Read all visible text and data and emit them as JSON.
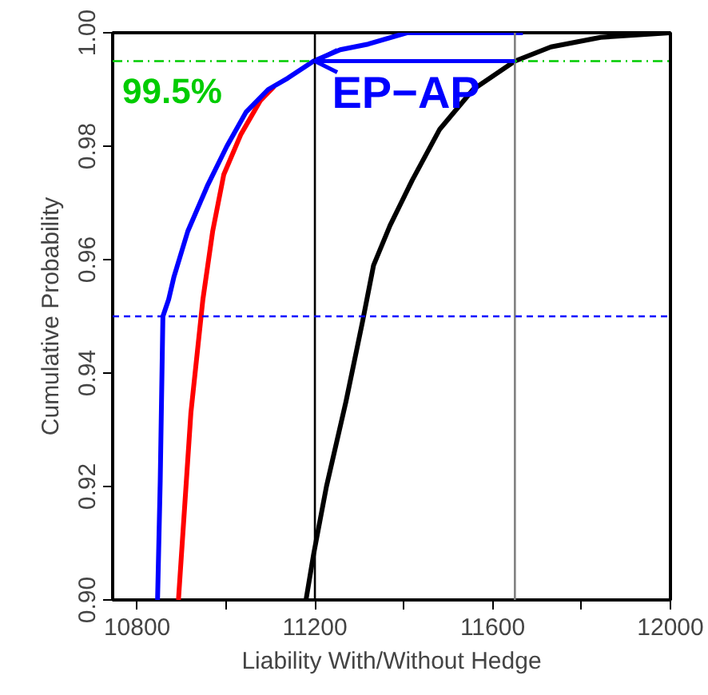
{
  "chart_data": {
    "type": "line",
    "xlabel": "Liability With/Without Hedge",
    "ylabel": "Cumulative Probability",
    "xlim": [
      10745,
      12000
    ],
    "ylim": [
      0.9,
      1.0
    ],
    "xticks": [
      10800,
      {
        "value": 11000,
        "label": null
      },
      11200,
      {
        "value": 11400,
        "label": null
      },
      11600,
      {
        "value": 11800,
        "label": null
      },
      12000
    ],
    "yticks": [
      {
        "value": 0.9,
        "label": "0.90"
      },
      {
        "value": 0.92,
        "label": "0.92"
      },
      {
        "value": 0.94,
        "label": "0.94"
      },
      {
        "value": 0.96,
        "label": "0.96"
      },
      {
        "value": 0.98,
        "label": "0.98"
      },
      {
        "value": 1.0,
        "label": "1.00"
      }
    ],
    "grid": false,
    "marker": "none",
    "line_style": "solid",
    "series": [
      {
        "color": "#000000",
        "x": [
          11180,
          11197,
          11226,
          11270,
          11307,
          11332,
          11369,
          11419,
          11481,
          11556,
          11650,
          11731,
          11843,
          12000
        ],
        "values": [
          0.9,
          0.908,
          0.92,
          0.935,
          0.949,
          0.959,
          0.966,
          0.974,
          0.983,
          0.99,
          0.995,
          0.9975,
          0.9992,
          1.0
        ]
      },
      {
        "color": "#ff0000",
        "x": [
          10893,
          10921,
          10948,
          10970,
          10995,
          11033,
          11077,
          11108
        ],
        "values": [
          0.9,
          0.933,
          0.953,
          0.965,
          0.975,
          0.982,
          0.988,
          0.9905
        ]
      },
      {
        "color": "#0000ff",
        "x": [
          10846,
          10852,
          10858,
          10871,
          10883,
          10914,
          10958,
          11002,
          11045,
          11095,
          11139,
          11197,
          11257,
          11320,
          11407,
          11668
        ],
        "values": [
          0.9,
          0.921,
          0.95,
          0.953,
          0.957,
          0.965,
          0.973,
          0.98,
          0.986,
          0.99,
          0.992,
          0.995,
          0.997,
          0.998,
          1.0,
          1.0
        ]
      }
    ],
    "ref_lines": [
      {
        "axis": "x",
        "value": 11200,
        "color": "#000000",
        "line_style": "solid"
      },
      {
        "axis": "x",
        "value": 11650,
        "color": "#808080",
        "line_style": "solid"
      },
      {
        "axis": "y",
        "value": 0.95,
        "color": "#0000ff",
        "line_style": "dashed"
      },
      {
        "axis": "y",
        "value": 0.995,
        "color": "#00cc00",
        "line_style": "dashdot",
        "label": "99.5%"
      }
    ],
    "annotations": [
      "EP−AP"
    ]
  }
}
